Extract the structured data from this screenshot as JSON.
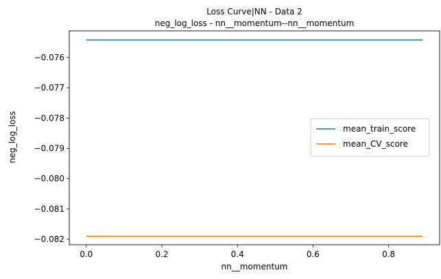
{
  "chart_data": {
    "type": "line",
    "title": "Loss Curve|NN - Data 2",
    "subtitle": "neg_log_loss - nn__momentum--nn__momentum",
    "xlabel": "nn__momentum",
    "ylabel": "neg_log_loss",
    "xlim": [
      -0.045,
      0.935
    ],
    "ylim": [
      -0.08218,
      -0.07512
    ],
    "xticks": [
      0.0,
      0.2,
      0.4,
      0.6,
      0.8
    ],
    "xtick_labels": [
      "0.0",
      "0.2",
      "0.4",
      "0.6",
      "0.8"
    ],
    "yticks": [
      -0.076,
      -0.077,
      -0.078,
      -0.079,
      -0.08,
      -0.081,
      -0.082
    ],
    "ytick_labels": [
      "−0.076",
      "−0.077",
      "−0.078",
      "−0.079",
      "−0.080",
      "−0.081",
      "−0.082"
    ],
    "grid": false,
    "legend_position": "center-right",
    "x": [
      0.0,
      0.1,
      0.2,
      0.3,
      0.4,
      0.5,
      0.6,
      0.7,
      0.8,
      0.89
    ],
    "series": [
      {
        "name": "mean_train_score",
        "color": "#1f77b4",
        "values": [
          -0.07542,
          -0.07542,
          -0.07542,
          -0.07542,
          -0.07542,
          -0.07542,
          -0.07542,
          -0.07542,
          -0.07542,
          -0.07542
        ]
      },
      {
        "name": "mean_CV_score",
        "color": "#ff7f0e",
        "values": [
          -0.0819,
          -0.0819,
          -0.0819,
          -0.0819,
          -0.0819,
          -0.0819,
          -0.0819,
          -0.0819,
          -0.0819,
          -0.0819
        ]
      }
    ]
  }
}
